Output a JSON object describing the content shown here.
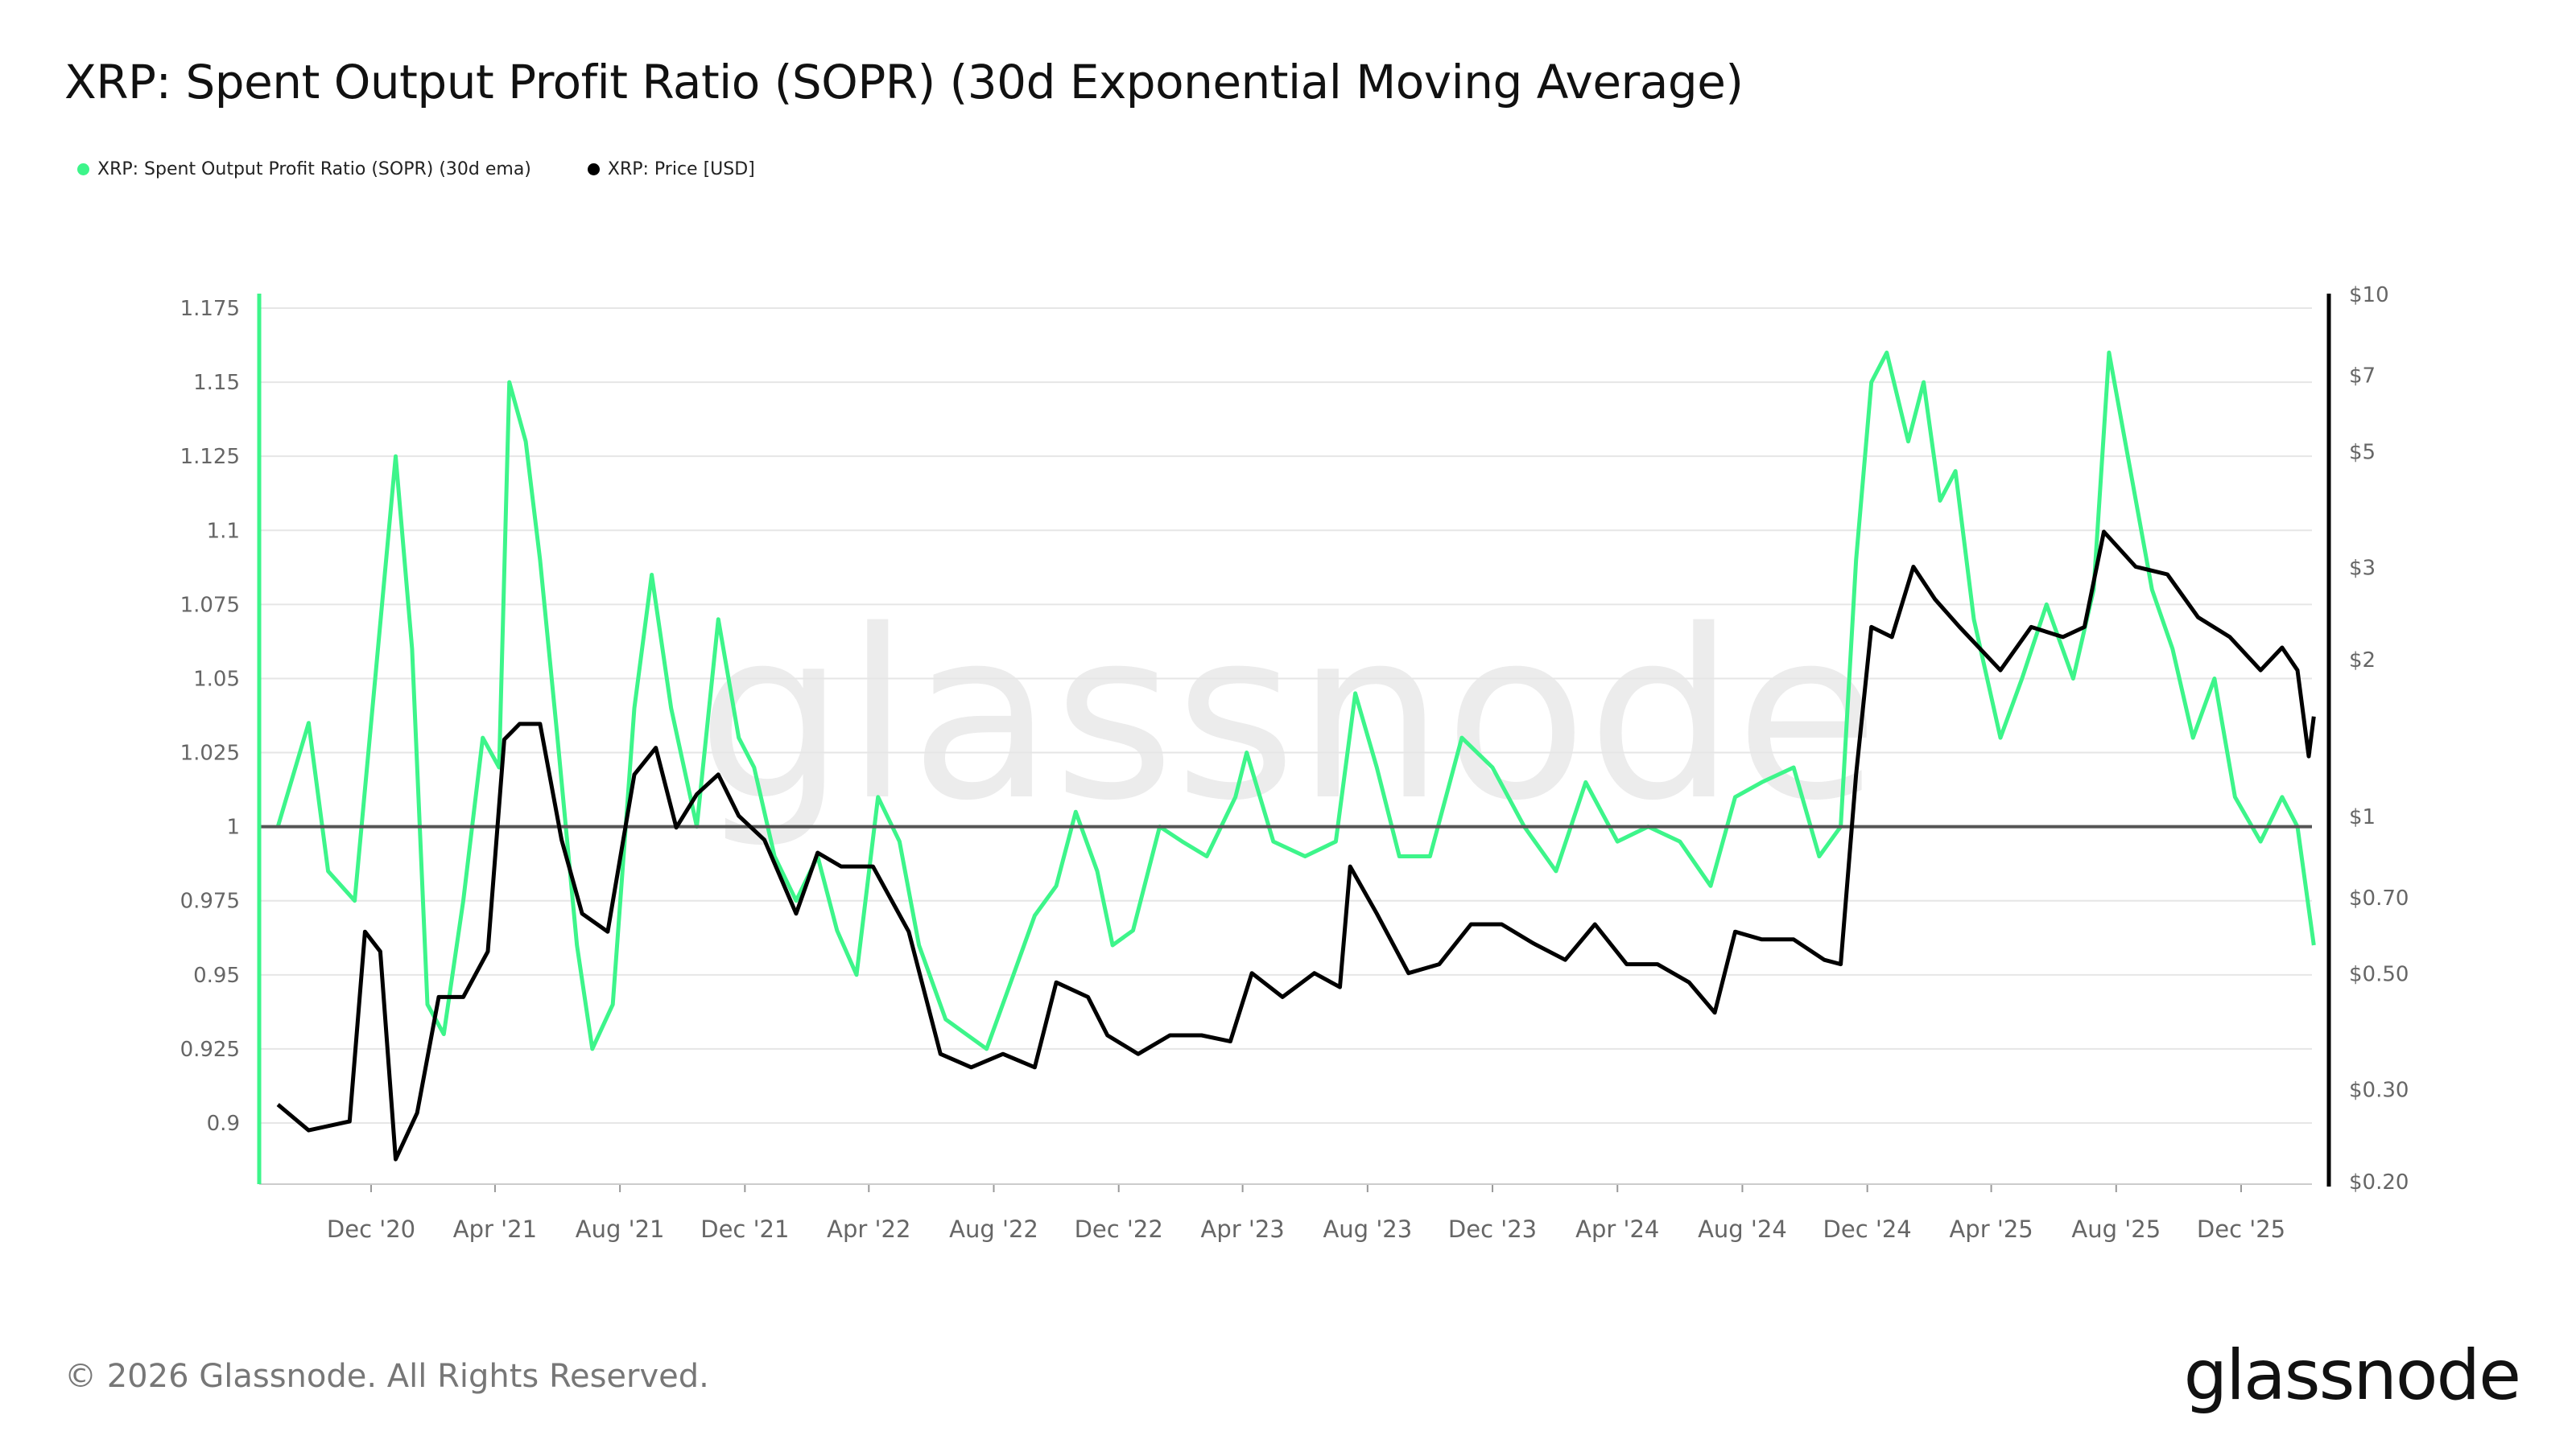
{
  "title": "XRP: Spent Output Profit Ratio (SOPR) (30d Exponential Moving Average)",
  "footer": "© 2026 Glassnode. All Rights Reserved.",
  "logo": "glassnode",
  "watermark": "glassnode",
  "colors": {
    "sopr": "#3df58a",
    "price": "#000000",
    "grid": "#e6e6e6",
    "baseline": "#555555",
    "tick": "#666666"
  },
  "chart_data": {
    "type": "line",
    "title": "XRP: Spent Output Profit Ratio (SOPR) (30d Exponential Moving Average)",
    "legend": [
      "XRP: Spent Output Profit Ratio (SOPR) (30d ema)",
      "XRP: Price [USD]"
    ],
    "legend_position": "top-left",
    "grid": true,
    "x_ticks": [
      "Dec '20",
      "Apr '21",
      "Aug '21",
      "Dec '21",
      "Apr '22",
      "Aug '22",
      "Dec '22",
      "Apr '23",
      "Aug '23",
      "Dec '23",
      "Apr '24",
      "Aug '24",
      "Dec '24",
      "Apr '25",
      "Aug '25",
      "Dec '25"
    ],
    "x_tick_dates": [
      "2020-12-01",
      "2021-04-01",
      "2021-08-01",
      "2021-12-01",
      "2022-04-01",
      "2022-08-01",
      "2022-12-01",
      "2023-04-01",
      "2023-08-01",
      "2023-12-01",
      "2024-04-01",
      "2024-08-01",
      "2024-12-01",
      "2025-04-01",
      "2025-08-01",
      "2025-12-01"
    ],
    "x_range": [
      "2020-09-01",
      "2026-02-10"
    ],
    "y_left": {
      "ticks": [
        1.175,
        1.15,
        1.125,
        1.1,
        1.075,
        1.05,
        1.025,
        1,
        0.975,
        0.95,
        0.925,
        0.9
      ],
      "labels": [
        "1.175",
        "1.15",
        "1.125",
        "1.1",
        "1.075",
        "1.05",
        "1.025",
        "1",
        "0.975",
        "0.95",
        "0.925",
        "0.9"
      ],
      "range": [
        0.88,
        1.18
      ],
      "baseline": 1
    },
    "y_right": {
      "scale": "log",
      "ticks": [
        10,
        7,
        5,
        3,
        2,
        1,
        0.7,
        0.5,
        0.3,
        0.2
      ],
      "labels": [
        "$10",
        "$7",
        "$5",
        "$3",
        "$2",
        "$1",
        "$0.70",
        "$0.50",
        "$0.30",
        "$0.20"
      ],
      "range": [
        0.2,
        10
      ]
    },
    "series": [
      {
        "name": "XRP: Spent Output Profit Ratio (SOPR) (30d ema)",
        "axis": "left",
        "points": [
          [
            "2020-09-01",
            1.0
          ],
          [
            "2020-10-01",
            1.035
          ],
          [
            "2020-10-20",
            0.985
          ],
          [
            "2020-11-15",
            0.975
          ],
          [
            "2020-12-05",
            1.05
          ],
          [
            "2020-12-25",
            1.125
          ],
          [
            "2021-01-10",
            1.06
          ],
          [
            "2021-01-25",
            0.94
          ],
          [
            "2021-02-10",
            0.93
          ],
          [
            "2021-03-01",
            0.975
          ],
          [
            "2021-03-20",
            1.03
          ],
          [
            "2021-04-05",
            1.02
          ],
          [
            "2021-04-15",
            1.15
          ],
          [
            "2021-05-01",
            1.13
          ],
          [
            "2021-05-15",
            1.09
          ],
          [
            "2021-06-01",
            1.03
          ],
          [
            "2021-06-20",
            0.96
          ],
          [
            "2021-07-05",
            0.925
          ],
          [
            "2021-07-25",
            0.94
          ],
          [
            "2021-08-15",
            1.04
          ],
          [
            "2021-09-01",
            1.085
          ],
          [
            "2021-09-20",
            1.04
          ],
          [
            "2021-10-15",
            1.0
          ],
          [
            "2021-11-05",
            1.07
          ],
          [
            "2021-11-25",
            1.03
          ],
          [
            "2021-12-10",
            1.02
          ],
          [
            "2021-12-30",
            0.99
          ],
          [
            "2022-01-20",
            0.975
          ],
          [
            "2022-02-10",
            0.99
          ],
          [
            "2022-03-01",
            0.965
          ],
          [
            "2022-03-20",
            0.95
          ],
          [
            "2022-04-10",
            1.01
          ],
          [
            "2022-05-01",
            0.995
          ],
          [
            "2022-05-20",
            0.96
          ],
          [
            "2022-06-15",
            0.935
          ],
          [
            "2022-07-05",
            0.93
          ],
          [
            "2022-07-25",
            0.925
          ],
          [
            "2022-08-15",
            0.945
          ],
          [
            "2022-09-10",
            0.97
          ],
          [
            "2022-10-01",
            0.98
          ],
          [
            "2022-10-20",
            1.005
          ],
          [
            "2022-11-10",
            0.985
          ],
          [
            "2022-11-25",
            0.96
          ],
          [
            "2022-12-15",
            0.965
          ],
          [
            "2023-01-10",
            1.0
          ],
          [
            "2023-02-01",
            0.995
          ],
          [
            "2023-02-25",
            0.99
          ],
          [
            "2023-03-25",
            1.01
          ],
          [
            "2023-04-05",
            1.025
          ],
          [
            "2023-05-01",
            0.995
          ],
          [
            "2023-06-01",
            0.99
          ],
          [
            "2023-07-01",
            0.995
          ],
          [
            "2023-07-20",
            1.045
          ],
          [
            "2023-08-10",
            1.02
          ],
          [
            "2023-09-01",
            0.99
          ],
          [
            "2023-10-01",
            0.99
          ],
          [
            "2023-11-01",
            1.03
          ],
          [
            "2023-12-01",
            1.02
          ],
          [
            "2024-01-01",
            1.0
          ],
          [
            "2024-02-01",
            0.985
          ],
          [
            "2024-03-01",
            1.015
          ],
          [
            "2024-04-01",
            0.995
          ],
          [
            "2024-05-01",
            1.0
          ],
          [
            "2024-06-01",
            0.995
          ],
          [
            "2024-07-01",
            0.98
          ],
          [
            "2024-07-25",
            1.01
          ],
          [
            "2024-08-20",
            1.015
          ],
          [
            "2024-09-20",
            1.02
          ],
          [
            "2024-10-15",
            0.99
          ],
          [
            "2024-11-05",
            1.0
          ],
          [
            "2024-11-20",
            1.09
          ],
          [
            "2024-12-05",
            1.15
          ],
          [
            "2024-12-20",
            1.16
          ],
          [
            "2025-01-10",
            1.13
          ],
          [
            "2025-01-25",
            1.15
          ],
          [
            "2025-02-10",
            1.11
          ],
          [
            "2025-02-25",
            1.12
          ],
          [
            "2025-03-15",
            1.07
          ],
          [
            "2025-04-10",
            1.03
          ],
          [
            "2025-05-01",
            1.05
          ],
          [
            "2025-05-25",
            1.075
          ],
          [
            "2025-06-20",
            1.05
          ],
          [
            "2025-07-10",
            1.08
          ],
          [
            "2025-07-25",
            1.16
          ],
          [
            "2025-08-15",
            1.12
          ],
          [
            "2025-09-05",
            1.08
          ],
          [
            "2025-09-25",
            1.06
          ],
          [
            "2025-10-15",
            1.03
          ],
          [
            "2025-11-05",
            1.05
          ],
          [
            "2025-11-25",
            1.01
          ],
          [
            "2025-12-20",
            0.995
          ],
          [
            "2026-01-10",
            1.01
          ],
          [
            "2026-01-25",
            1.0
          ],
          [
            "2026-02-10",
            0.96
          ]
        ]
      },
      {
        "name": "XRP: Price [USD]",
        "axis": "right",
        "points": [
          [
            "2020-09-01",
            0.28
          ],
          [
            "2020-10-01",
            0.25
          ],
          [
            "2020-11-10",
            0.26
          ],
          [
            "2020-11-25",
            0.6
          ],
          [
            "2020-12-10",
            0.55
          ],
          [
            "2020-12-25",
            0.22
          ],
          [
            "2021-01-15",
            0.27
          ],
          [
            "2021-02-05",
            0.45
          ],
          [
            "2021-03-01",
            0.45
          ],
          [
            "2021-03-25",
            0.55
          ],
          [
            "2021-04-10",
            1.4
          ],
          [
            "2021-04-25",
            1.5
          ],
          [
            "2021-05-15",
            1.5
          ],
          [
            "2021-06-05",
            0.9
          ],
          [
            "2021-06-25",
            0.65
          ],
          [
            "2021-07-20",
            0.6
          ],
          [
            "2021-08-15",
            1.2
          ],
          [
            "2021-09-05",
            1.35
          ],
          [
            "2021-09-25",
            0.95
          ],
          [
            "2021-10-15",
            1.1
          ],
          [
            "2021-11-05",
            1.2
          ],
          [
            "2021-11-25",
            1.0
          ],
          [
            "2021-12-20",
            0.9
          ],
          [
            "2022-01-20",
            0.65
          ],
          [
            "2022-02-10",
            0.85
          ],
          [
            "2022-03-05",
            0.8
          ],
          [
            "2022-04-05",
            0.8
          ],
          [
            "2022-05-10",
            0.6
          ],
          [
            "2022-06-10",
            0.35
          ],
          [
            "2022-07-10",
            0.33
          ],
          [
            "2022-08-10",
            0.35
          ],
          [
            "2022-09-10",
            0.33
          ],
          [
            "2022-10-01",
            0.48
          ],
          [
            "2022-11-01",
            0.45
          ],
          [
            "2022-11-20",
            0.38
          ],
          [
            "2022-12-20",
            0.35
          ],
          [
            "2023-01-20",
            0.38
          ],
          [
            "2023-02-20",
            0.38
          ],
          [
            "2023-03-20",
            0.37
          ],
          [
            "2023-04-10",
            0.5
          ],
          [
            "2023-05-10",
            0.45
          ],
          [
            "2023-06-10",
            0.5
          ],
          [
            "2023-07-05",
            0.47
          ],
          [
            "2023-07-15",
            0.8
          ],
          [
            "2023-08-10",
            0.65
          ],
          [
            "2023-09-10",
            0.5
          ],
          [
            "2023-10-10",
            0.52
          ],
          [
            "2023-11-10",
            0.62
          ],
          [
            "2023-12-10",
            0.62
          ],
          [
            "2024-01-10",
            0.57
          ],
          [
            "2024-02-10",
            0.53
          ],
          [
            "2024-03-10",
            0.62
          ],
          [
            "2024-04-10",
            0.52
          ],
          [
            "2024-05-10",
            0.52
          ],
          [
            "2024-06-10",
            0.48
          ],
          [
            "2024-07-05",
            0.42
          ],
          [
            "2024-07-25",
            0.6
          ],
          [
            "2024-08-20",
            0.58
          ],
          [
            "2024-09-20",
            0.58
          ],
          [
            "2024-10-20",
            0.53
          ],
          [
            "2024-11-05",
            0.52
          ],
          [
            "2024-11-20",
            1.2
          ],
          [
            "2024-12-05",
            2.3
          ],
          [
            "2024-12-25",
            2.2
          ],
          [
            "2025-01-15",
            3.0
          ],
          [
            "2025-02-05",
            2.6
          ],
          [
            "2025-03-01",
            2.3
          ],
          [
            "2025-04-10",
            1.9
          ],
          [
            "2025-05-10",
            2.3
          ],
          [
            "2025-06-10",
            2.2
          ],
          [
            "2025-07-01",
            2.3
          ],
          [
            "2025-07-20",
            3.5
          ],
          [
            "2025-08-20",
            3.0
          ],
          [
            "2025-09-20",
            2.9
          ],
          [
            "2025-10-20",
            2.4
          ],
          [
            "2025-11-20",
            2.2
          ],
          [
            "2025-12-20",
            1.9
          ],
          [
            "2026-01-10",
            2.1
          ],
          [
            "2026-01-25",
            1.9
          ],
          [
            "2026-02-05",
            1.3
          ],
          [
            "2026-02-10",
            1.55
          ]
        ]
      }
    ]
  }
}
